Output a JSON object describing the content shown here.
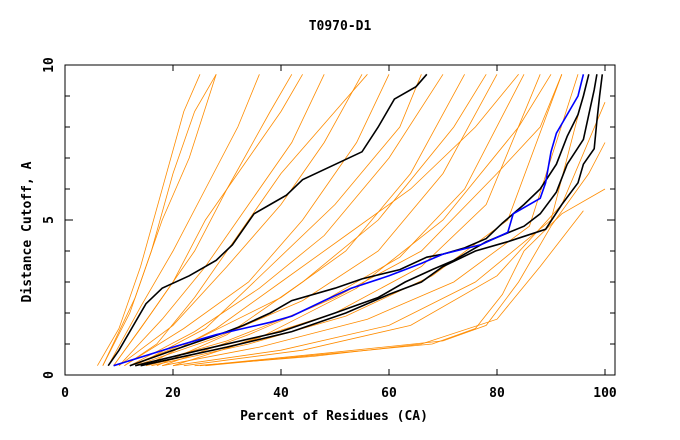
{
  "chart_data": {
    "type": "line",
    "title": "T0970-D1",
    "xlabel": "Percent of Residues (CA)",
    "ylabel": "Distance Cutoff, A",
    "xlim": [
      0,
      100
    ],
    "ylim": [
      0,
      10
    ],
    "xticks": [
      "0",
      "20",
      "40",
      "60",
      "80",
      "100"
    ],
    "yticks": [
      "0",
      "5",
      "10"
    ],
    "grid": false,
    "colors": {
      "other_models": "#ff8c00",
      "highlight": "#0000ff",
      "reference": "#000000"
    },
    "highlight_series": [
      [
        9,
        0.3
      ],
      [
        20,
        0.9
      ],
      [
        28,
        1.3
      ],
      [
        33,
        1.5
      ],
      [
        38,
        1.7
      ],
      [
        42,
        1.9
      ],
      [
        48,
        2.4
      ],
      [
        53,
        2.8
      ],
      [
        60,
        3.2
      ],
      [
        66,
        3.6
      ],
      [
        70,
        3.9
      ],
      [
        77,
        4.2
      ],
      [
        82,
        4.6
      ],
      [
        83,
        5.2
      ],
      [
        88,
        5.7
      ],
      [
        89,
        6.2
      ],
      [
        90,
        7.2
      ],
      [
        91,
        7.8
      ],
      [
        93,
        8.4
      ],
      [
        95,
        9.0
      ],
      [
        96,
        9.7
      ]
    ],
    "reference_series": [
      [
        [
          8,
          0.3
        ],
        [
          10,
          0.8
        ],
        [
          12,
          1.4
        ],
        [
          14,
          2.0
        ],
        [
          15,
          2.3
        ],
        [
          18,
          2.8
        ],
        [
          23,
          3.2
        ],
        [
          28,
          3.7
        ],
        [
          31,
          4.2
        ],
        [
          35,
          5.2
        ],
        [
          38,
          5.5
        ],
        [
          41,
          5.8
        ],
        [
          44,
          6.3
        ],
        [
          55,
          7.2
        ],
        [
          58,
          8.0
        ],
        [
          61,
          8.9
        ],
        [
          65,
          9.3
        ],
        [
          67,
          9.7
        ]
      ],
      [
        [
          12,
          0.3
        ],
        [
          20,
          0.8
        ],
        [
          30,
          1.4
        ],
        [
          33,
          1.6
        ],
        [
          38,
          2.0
        ],
        [
          42,
          2.4
        ],
        [
          50,
          2.8
        ],
        [
          55,
          3.1
        ],
        [
          62,
          3.4
        ],
        [
          67,
          3.8
        ],
        [
          70,
          3.9
        ],
        [
          74,
          4.1
        ],
        [
          78,
          4.4
        ],
        [
          81,
          4.9
        ],
        [
          85,
          5.5
        ],
        [
          88,
          6.0
        ],
        [
          91,
          6.8
        ],
        [
          93,
          7.7
        ],
        [
          95,
          8.4
        ],
        [
          96,
          9.0
        ],
        [
          97,
          9.7
        ]
      ],
      [
        [
          13,
          0.3
        ],
        [
          25,
          0.8
        ],
        [
          40,
          1.4
        ],
        [
          50,
          2.0
        ],
        [
          58,
          2.5
        ],
        [
          63,
          3.0
        ],
        [
          68,
          3.4
        ],
        [
          72,
          3.7
        ],
        [
          78,
          4.3
        ],
        [
          85,
          4.8
        ],
        [
          88,
          5.2
        ],
        [
          91,
          5.9
        ],
        [
          93,
          6.8
        ],
        [
          96,
          7.6
        ],
        [
          97,
          8.4
        ],
        [
          98,
          9.2
        ],
        [
          98.5,
          9.7
        ]
      ],
      [
        [
          14,
          0.3
        ],
        [
          30,
          0.9
        ],
        [
          42,
          1.4
        ],
        [
          52,
          2.0
        ],
        [
          60,
          2.6
        ],
        [
          66,
          3.0
        ],
        [
          70,
          3.5
        ],
        [
          76,
          4.0
        ],
        [
          82,
          4.3
        ],
        [
          89,
          4.7
        ],
        [
          92,
          5.5
        ],
        [
          95,
          6.2
        ],
        [
          96,
          6.8
        ],
        [
          98,
          7.3
        ],
        [
          98.5,
          8.2
        ],
        [
          99,
          9.0
        ],
        [
          99.5,
          9.7
        ]
      ]
    ],
    "other_series": [
      [
        [
          6,
          0.3
        ],
        [
          10,
          1.5
        ],
        [
          14,
          3.5
        ],
        [
          18,
          6.0
        ],
        [
          22,
          8.5
        ],
        [
          25,
          9.7
        ]
      ],
      [
        [
          7,
          0.3
        ],
        [
          12,
          2.0
        ],
        [
          16,
          4.0
        ],
        [
          20,
          6.5
        ],
        [
          24,
          8.5
        ],
        [
          28,
          9.7
        ]
      ],
      [
        [
          7,
          0.3
        ],
        [
          13,
          2.5
        ],
        [
          18,
          5.0
        ],
        [
          23,
          7.0
        ],
        [
          28,
          9.7
        ]
      ],
      [
        [
          8,
          0.3
        ],
        [
          14,
          2.2
        ],
        [
          20,
          4.0
        ],
        [
          26,
          6.0
        ],
        [
          32,
          8.0
        ],
        [
          36,
          9.7
        ]
      ],
      [
        [
          9,
          0.3
        ],
        [
          16,
          2.0
        ],
        [
          24,
          4.0
        ],
        [
          30,
          6.0
        ],
        [
          38,
          8.5
        ],
        [
          42,
          9.7
        ]
      ],
      [
        [
          10,
          0.3
        ],
        [
          18,
          1.8
        ],
        [
          26,
          3.5
        ],
        [
          34,
          5.5
        ],
        [
          42,
          7.5
        ],
        [
          48,
          9.7
        ]
      ],
      [
        [
          10,
          0.3
        ],
        [
          20,
          1.6
        ],
        [
          30,
          3.5
        ],
        [
          40,
          5.5
        ],
        [
          48,
          7.5
        ],
        [
          55,
          9.7
        ]
      ],
      [
        [
          11,
          0.3
        ],
        [
          22,
          1.5
        ],
        [
          34,
          3.0
        ],
        [
          44,
          5.0
        ],
        [
          54,
          7.5
        ],
        [
          60,
          9.7
        ]
      ],
      [
        [
          12,
          0.3
        ],
        [
          24,
          1.4
        ],
        [
          36,
          2.8
        ],
        [
          48,
          4.5
        ],
        [
          60,
          7.0
        ],
        [
          70,
          9.7
        ]
      ],
      [
        [
          12,
          0.3
        ],
        [
          25,
          1.2
        ],
        [
          40,
          2.5
        ],
        [
          52,
          4.0
        ],
        [
          64,
          6.5
        ],
        [
          74,
          9.7
        ]
      ],
      [
        [
          13,
          0.3
        ],
        [
          28,
          1.2
        ],
        [
          44,
          2.4
        ],
        [
          58,
          4.0
        ],
        [
          70,
          6.5
        ],
        [
          80,
          9.7
        ]
      ],
      [
        [
          14,
          0.3
        ],
        [
          30,
          1.1
        ],
        [
          46,
          2.2
        ],
        [
          62,
          3.8
        ],
        [
          74,
          6.0
        ],
        [
          85,
          9.7
        ]
      ],
      [
        [
          15,
          0.3
        ],
        [
          32,
          1.0
        ],
        [
          50,
          2.0
        ],
        [
          66,
          3.5
        ],
        [
          78,
          5.5
        ],
        [
          88,
          9.7
        ]
      ],
      [
        [
          16,
          0.3
        ],
        [
          34,
          1.0
        ],
        [
          52,
          1.9
        ],
        [
          68,
          3.2
        ],
        [
          82,
          5.0
        ],
        [
          92,
          9.7
        ]
      ],
      [
        [
          18,
          0.3
        ],
        [
          36,
          0.9
        ],
        [
          56,
          1.8
        ],
        [
          72,
          3.0
        ],
        [
          86,
          4.8
        ],
        [
          95,
          9.7
        ]
      ],
      [
        [
          20,
          0.3
        ],
        [
          40,
          0.8
        ],
        [
          60,
          1.6
        ],
        [
          76,
          3.0
        ],
        [
          90,
          5.0
        ],
        [
          97,
          9.7
        ]
      ],
      [
        [
          22,
          0.3
        ],
        [
          44,
          0.8
        ],
        [
          64,
          1.6
        ],
        [
          80,
          3.2
        ],
        [
          92,
          5.5
        ],
        [
          100,
          8.8
        ]
      ],
      [
        [
          25,
          0.3
        ],
        [
          48,
          0.7
        ],
        [
          70,
          1.1
        ],
        [
          78,
          1.6
        ],
        [
          84,
          3.0
        ],
        [
          90,
          4.8
        ],
        [
          97,
          6.5
        ],
        [
          100,
          7.5
        ]
      ],
      [
        [
          26,
          0.3
        ],
        [
          50,
          0.7
        ],
        [
          68,
          1.0
        ],
        [
          76,
          1.5
        ],
        [
          81,
          2.6
        ],
        [
          85,
          4.0
        ],
        [
          92,
          5.2
        ],
        [
          100,
          6.0
        ]
      ],
      [
        [
          24,
          0.3
        ],
        [
          46,
          0.6
        ],
        [
          66,
          1.0
        ],
        [
          80,
          1.8
        ],
        [
          88,
          3.5
        ],
        [
          96,
          5.3
        ]
      ],
      [
        [
          9,
          0.3
        ],
        [
          14,
          1.5
        ],
        [
          20,
          3.0
        ],
        [
          26,
          5.0
        ],
        [
          34,
          7.0
        ],
        [
          40,
          8.5
        ],
        [
          44,
          9.7
        ]
      ],
      [
        [
          11,
          0.3
        ],
        [
          17,
          1.0
        ],
        [
          24,
          2.5
        ],
        [
          32,
          4.5
        ],
        [
          40,
          6.5
        ],
        [
          50,
          8.5
        ],
        [
          56,
          9.7
        ]
      ],
      [
        [
          13,
          0.3
        ],
        [
          26,
          1.5
        ],
        [
          38,
          3.5
        ],
        [
          50,
          5.5
        ],
        [
          62,
          8.0
        ],
        [
          66,
          9.7
        ]
      ],
      [
        [
          17,
          0.3
        ],
        [
          30,
          1.3
        ],
        [
          44,
          3.0
        ],
        [
          58,
          5.0
        ],
        [
          72,
          8.0
        ],
        [
          78,
          9.7
        ]
      ],
      [
        [
          20,
          0.3
        ],
        [
          36,
          1.2
        ],
        [
          54,
          2.8
        ],
        [
          70,
          5.0
        ],
        [
          84,
          8.0
        ],
        [
          90,
          9.7
        ]
      ],
      [
        [
          15,
          0.3
        ],
        [
          28,
          1.5
        ],
        [
          40,
          3.0
        ],
        [
          52,
          4.5
        ],
        [
          64,
          6.0
        ],
        [
          76,
          8.0
        ],
        [
          84,
          9.7
        ]
      ],
      [
        [
          18,
          0.3
        ],
        [
          34,
          1.3
        ],
        [
          50,
          2.5
        ],
        [
          66,
          4.0
        ],
        [
          80,
          6.5
        ],
        [
          88,
          8.0
        ],
        [
          92,
          9.7
        ]
      ]
    ]
  }
}
